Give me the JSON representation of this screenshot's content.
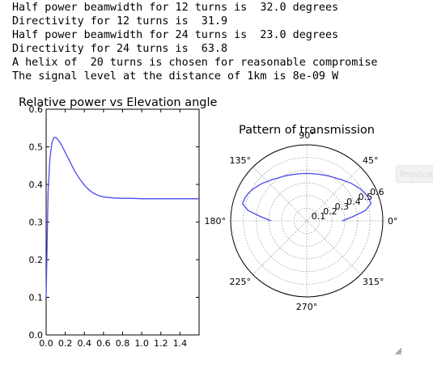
{
  "output_lines": [
    "Half power beamwidth for 12 turns is  32.0 degrees",
    "Directivity for 12 turns is  31.9",
    "Half power beamwidth for 24 turns is  23.0 degrees",
    "Directivity for 24 turns is  63.8",
    "A helix of  20 turns is chosen for reasonable compromise",
    "The signal level at the distance of 1km is 8e-09 W"
  ],
  "preview_label": "Preview",
  "colors": {
    "series": "#4a4af0",
    "grid": "#9a9a9a",
    "axes": "#000000"
  },
  "chart_data": [
    {
      "type": "line",
      "title": "Relative power vs Elevation angle",
      "xlim": [
        0,
        1.6
      ],
      "ylim": [
        0,
        0.6
      ],
      "xticks": [
        "0.0",
        "0.2",
        "0.4",
        "0.6",
        "0.8",
        "1.0",
        "1.2",
        "1.4"
      ],
      "yticks": [
        "0.0",
        "0.1",
        "0.2",
        "0.3",
        "0.4",
        "0.5",
        "0.6"
      ],
      "series": [
        {
          "x": [
            0.0,
            0.02,
            0.04,
            0.06,
            0.08,
            0.1,
            0.12,
            0.15,
            0.18,
            0.22,
            0.26,
            0.3,
            0.35,
            0.4,
            0.45,
            0.5,
            0.55,
            0.6,
            0.7,
            0.8,
            0.9,
            1.0,
            1.1,
            1.2,
            1.3,
            1.4,
            1.5,
            1.6
          ],
          "y": [
            0.1,
            0.38,
            0.47,
            0.51,
            0.525,
            0.525,
            0.52,
            0.51,
            0.495,
            0.475,
            0.455,
            0.435,
            0.415,
            0.398,
            0.385,
            0.376,
            0.37,
            0.367,
            0.364,
            0.363,
            0.363,
            0.362,
            0.362,
            0.362,
            0.362,
            0.362,
            0.362,
            0.362
          ]
        }
      ],
      "grid": false
    },
    {
      "type": "polar",
      "title": "Pattern of transmission",
      "angle_labels": [
        "0°",
        "45°",
        "90°",
        "135°",
        "180°",
        "225°",
        "270°",
        "315°"
      ],
      "radial_ticks": [
        "0.1",
        "0.2",
        "0.3",
        "0.4",
        "0.5",
        "0.6"
      ],
      "rmax": 0.6,
      "grid": true,
      "series": [
        {
          "theta_deg": [
            0,
            5,
            10,
            15,
            20,
            25,
            30,
            35,
            40,
            45,
            50,
            55,
            60,
            65,
            70,
            75,
            80,
            85,
            90,
            95,
            100,
            105,
            110,
            115,
            120,
            125,
            130,
            135,
            140,
            145,
            150,
            155,
            160,
            165,
            170,
            175,
            180
          ],
          "r": [
            0.28,
            0.36,
            0.47,
            0.525,
            0.52,
            0.51,
            0.495,
            0.475,
            0.46,
            0.44,
            0.425,
            0.41,
            0.4,
            0.392,
            0.385,
            0.38,
            0.376,
            0.375,
            0.374,
            0.375,
            0.376,
            0.38,
            0.385,
            0.392,
            0.4,
            0.41,
            0.425,
            0.44,
            0.46,
            0.475,
            0.495,
            0.51,
            0.52,
            0.525,
            0.47,
            0.36,
            0.28
          ]
        }
      ]
    }
  ]
}
